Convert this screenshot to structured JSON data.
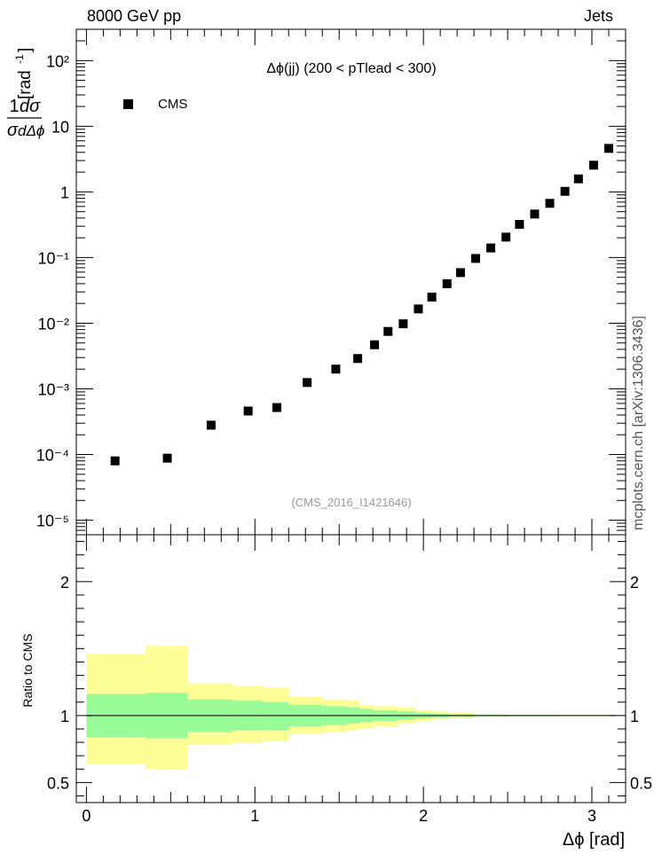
{
  "header": {
    "left": "8000 GeV pp",
    "right": "Jets"
  },
  "side_text": "mcplots.cern.ch [arXiv:1306.3436]",
  "ratio_ylabel": "Ratio to CMS",
  "chart_data": {
    "type": "scatter",
    "title": "Δϕ(jj) (200 < pTlead <  300)",
    "watermark": "(CMS_2016_I1421646)",
    "xlabel": "Δϕ [rad]",
    "ylabel": "1/σ dσ/dΔϕ [rad⁻¹]",
    "y_scale": "log",
    "xlim": [
      -0.06,
      3.2
    ],
    "ylim": [
      6e-06,
      300
    ],
    "x_ticks": [
      "0",
      "1",
      "2",
      "3"
    ],
    "y_ticks": [
      "10⁻⁵",
      "10⁻⁴",
      "10⁻³",
      "10⁻²",
      "10⁻¹",
      "1",
      "10",
      "10²"
    ],
    "legend_position": "top-left",
    "series": [
      {
        "name": "CMS",
        "marker": "square",
        "color": "#000000",
        "x": [
          0.17,
          0.48,
          0.74,
          0.96,
          1.13,
          1.31,
          1.48,
          1.61,
          1.71,
          1.79,
          1.88,
          1.97,
          2.05,
          2.14,
          2.22,
          2.31,
          2.4,
          2.49,
          2.57,
          2.66,
          2.75,
          2.84,
          2.92,
          3.01,
          3.1
        ],
        "y": [
          8e-05,
          8.8e-05,
          0.00028,
          0.00046,
          0.00052,
          0.00125,
          0.002,
          0.0029,
          0.0047,
          0.0075,
          0.0098,
          0.0165,
          0.025,
          0.04,
          0.059,
          0.097,
          0.14,
          0.205,
          0.32,
          0.46,
          0.67,
          1.02,
          1.58,
          2.55,
          4.6
        ]
      }
    ],
    "ratio": {
      "ylabel": "Ratio to CMS",
      "ylim": [
        0.35,
        2.35
      ],
      "y_ticks": [
        "0.5",
        "1",
        "2"
      ],
      "reference_line": 1,
      "band_colors": {
        "inner": "#98fb98",
        "outer": "#fdfd96"
      },
      "bins": [
        [
          0.0,
          0.35,
          0.84,
          1.16,
          0.64,
          1.46
        ],
        [
          0.35,
          0.6,
          0.83,
          1.17,
          0.6,
          1.52
        ],
        [
          0.6,
          0.87,
          0.88,
          1.12,
          0.78,
          1.24
        ],
        [
          0.87,
          1.05,
          0.89,
          1.11,
          0.8,
          1.22
        ],
        [
          1.05,
          1.2,
          0.89,
          1.1,
          0.81,
          1.21
        ],
        [
          1.2,
          1.4,
          0.92,
          1.08,
          0.86,
          1.14
        ],
        [
          1.4,
          1.55,
          0.93,
          1.07,
          0.88,
          1.12
        ],
        [
          1.55,
          1.62,
          0.94,
          1.06,
          0.89,
          1.11
        ],
        [
          1.62,
          1.7,
          0.95,
          1.05,
          0.9,
          1.08
        ],
        [
          1.7,
          1.85,
          0.96,
          1.04,
          0.92,
          1.07
        ],
        [
          1.85,
          1.95,
          0.97,
          1.03,
          0.94,
          1.06
        ],
        [
          1.95,
          2.05,
          0.98,
          1.02,
          0.96,
          1.04
        ],
        [
          2.05,
          2.15,
          0.985,
          1.015,
          0.975,
          1.03
        ],
        [
          2.15,
          2.3,
          0.99,
          1.01,
          0.985,
          1.02
        ],
        [
          2.3,
          2.5,
          0.993,
          1.007,
          0.99,
          1.01
        ],
        [
          2.5,
          2.8,
          0.995,
          1.005,
          0.993,
          1.007
        ],
        [
          2.8,
          3.14,
          0.996,
          1.004,
          0.995,
          1.005
        ]
      ]
    }
  }
}
